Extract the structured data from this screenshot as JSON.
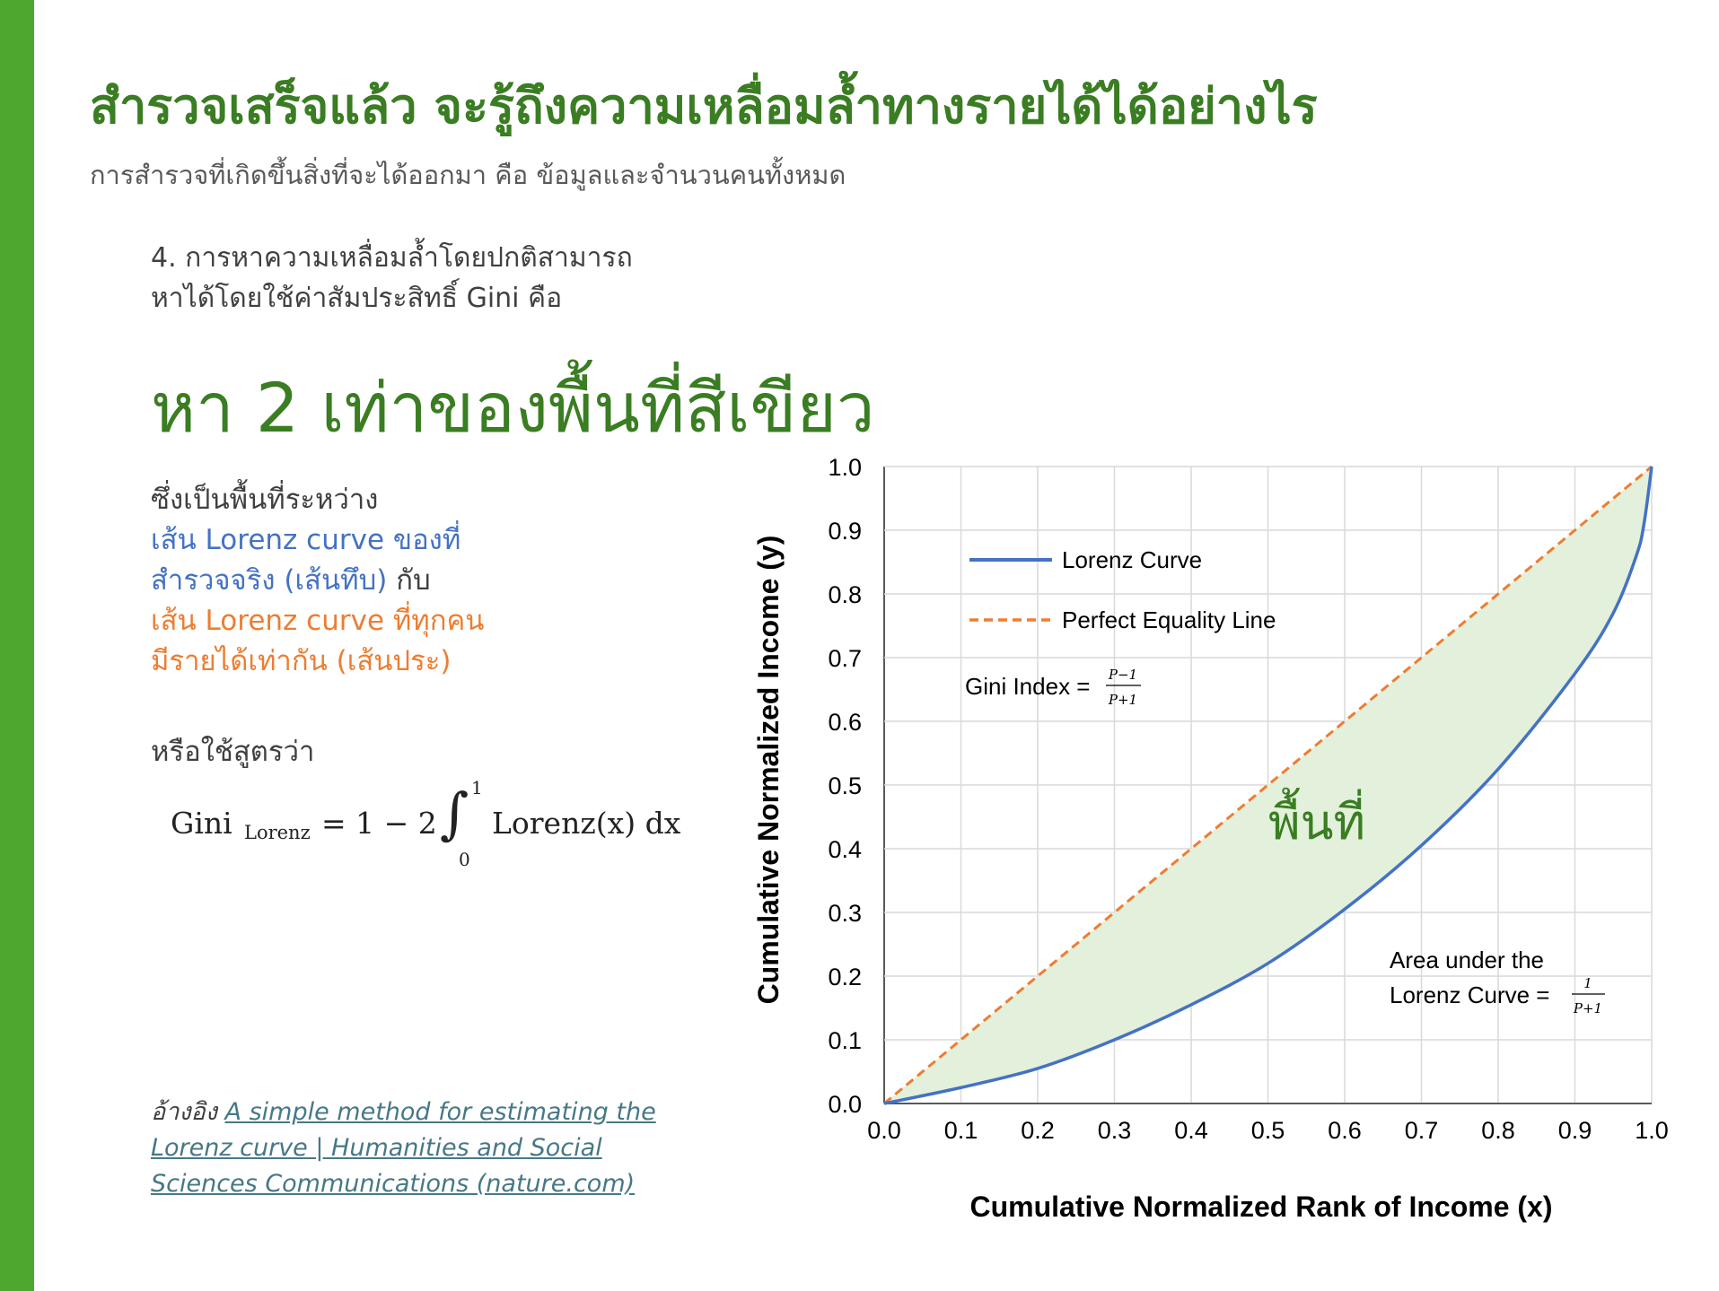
{
  "slide": {
    "title": "สำรวจเสร็จแล้ว จะรู้ถึงความเหลื่อมล้ำทางรายได้ได้อย่างไร",
    "subtitle": "การสำรวจที่เกิดขึ้นสิ่งที่จะได้ออกมา คือ ข้อมูลและจำนวนคนทั้งหมด",
    "point_line1": "4. การหาความเหลื่อมล้ำโดยปกติสามารถ",
    "point_line2": "หาได้โดยใช้ค่าสัมประสิทธิ์ Gini คือ",
    "headline": "หา 2 เท่าของพื้นที่สีเขียว",
    "desc_line1": "ซึ่งเป็นพื้นที่ระหว่าง",
    "desc_line2": "เส้น Lorenz curve ของที่",
    "desc_line3a": "สำรวจจริง (เส้นทึบ)",
    "desc_line3b": " กับ",
    "desc_line4": "เส้น Lorenz curve ที่ทุกคน",
    "desc_line5": "มีรายได้เท่ากัน (เส้นประ)",
    "formula_label": "หรือใช้สูตรว่า",
    "formula": {
      "lhs": "Gini",
      "lhs_sub": "Lorenz",
      "eq": "= 1 − 2",
      "integral": "∫",
      "upper": "1",
      "lower": "0",
      "body": "Lorenz(x) dx"
    },
    "ref_prefix": "อ้างอิง ",
    "ref_link": "A simple method for estimating the Lorenz curve | Humanities and Social Sciences Communications (nature.com)"
  },
  "colors": {
    "accent_green": "#3a7d22",
    "side_bar": "#4ea72e",
    "lorenz_blue": "#4472c4",
    "equality_orange": "#ed7d31",
    "fill_green": "#e3f0dc"
  },
  "chart_data": {
    "type": "line",
    "xlabel": "Cumulative Normalized Rank of Income (x)",
    "ylabel": "Cumulative Normalized Income (y)",
    "xlim": [
      0,
      1
    ],
    "ylim": [
      0,
      1
    ],
    "x_ticks": [
      "0.0",
      "0.1",
      "0.2",
      "0.3",
      "0.4",
      "0.5",
      "0.6",
      "0.7",
      "0.8",
      "0.9",
      "1.0"
    ],
    "y_ticks": [
      "0.0",
      "0.1",
      "0.2",
      "0.3",
      "0.4",
      "0.5",
      "0.6",
      "0.7",
      "0.8",
      "0.9",
      "1.0"
    ],
    "grid": true,
    "legend_position": "top-left",
    "series": [
      {
        "name": "Lorenz Curve",
        "style": "solid",
        "x": [
          0,
          0.1,
          0.2,
          0.3,
          0.4,
          0.5,
          0.6,
          0.7,
          0.8,
          0.9,
          0.95,
          0.98,
          0.99,
          1.0
        ],
        "y": [
          0,
          0.025,
          0.055,
          0.1,
          0.155,
          0.22,
          0.305,
          0.405,
          0.525,
          0.675,
          0.77,
          0.86,
          0.91,
          1.0
        ]
      },
      {
        "name": "Perfect Equality Line",
        "style": "dashed",
        "x": [
          0,
          1
        ],
        "y": [
          0,
          1
        ]
      }
    ],
    "annotations": {
      "gini_label": "Gini Index =",
      "gini_num": "P−1",
      "gini_den": "P+1",
      "area_line1": "Area under the",
      "area_line2": "Lorenz Curve =",
      "area_num": "1",
      "area_den": "P+1",
      "area_fill_label": "พื้นที่"
    }
  }
}
